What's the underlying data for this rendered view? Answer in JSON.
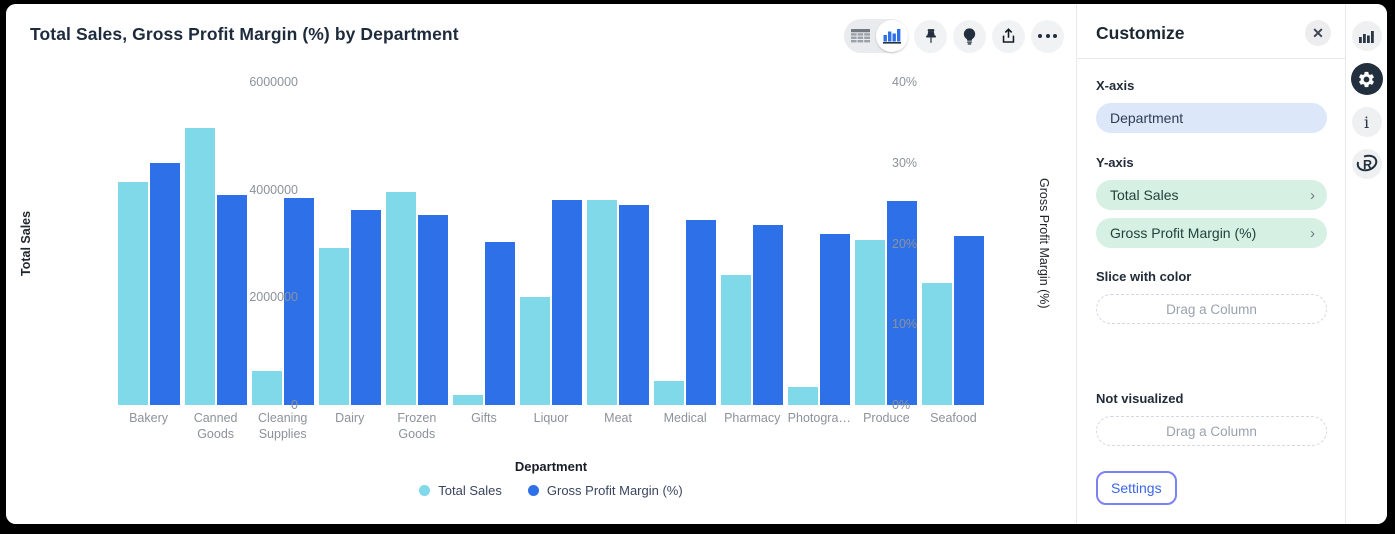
{
  "header": {
    "title": "Total Sales, Gross Profit Margin (%) by Department"
  },
  "toolbar": {
    "view_toggle": {
      "options": [
        "table-view",
        "chart-view"
      ],
      "selected": "chart-view"
    },
    "icons": [
      "pin-icon",
      "lightbulb-icon",
      "share-icon",
      "more-options-icon"
    ]
  },
  "chart_data": {
    "type": "bar",
    "title": "Total Sales, Gross Profit Margin (%) by Department",
    "categories": [
      "Bakery",
      "Canned Goods",
      "Cleaning Supplies",
      "Dairy",
      "Frozen Goods",
      "Gifts",
      "Liquor",
      "Meat",
      "Medical",
      "Pharmacy",
      "Photogra…",
      "Produce",
      "Seafood"
    ],
    "series": [
      {
        "name": "Total Sales",
        "axis": "left",
        "color": "#7fd9e8",
        "values": [
          4150000,
          5150000,
          630000,
          2920000,
          3960000,
          190000,
          2000000,
          3810000,
          450000,
          2410000,
          330000,
          3070000,
          2270000
        ]
      },
      {
        "name": "Gross Profit Margin (%)",
        "axis": "right",
        "color": "#2e70e8",
        "values": [
          30.0,
          26.0,
          25.7,
          24.2,
          23.5,
          20.2,
          25.4,
          24.8,
          22.9,
          22.3,
          21.2,
          25.3,
          20.9
        ]
      }
    ],
    "left_axis": {
      "label": "Total Sales",
      "ticks": [
        "6000000",
        "4000000",
        "2000000",
        "0"
      ],
      "min": 0,
      "max": 6000000
    },
    "right_axis": {
      "label": "Gross Profit Margin (%)",
      "ticks": [
        "40%",
        "30%",
        "20%",
        "10%",
        "0%"
      ],
      "min": 0,
      "max": 40
    },
    "xlabel": "Department",
    "legend": [
      {
        "label": "Total Sales",
        "color": "#7fd9e8"
      },
      {
        "label": "Gross Profit Margin (%)",
        "color": "#2e70e8"
      }
    ],
    "grid": false,
    "legend_position": "bottom"
  },
  "panel": {
    "title": "Customize",
    "close_icon": "close-icon",
    "x_axis": {
      "label": "X-axis",
      "value": "Department"
    },
    "y_axis": {
      "label": "Y-axis",
      "values": [
        "Total Sales",
        "Gross Profit Margin (%)"
      ]
    },
    "slice": {
      "label": "Slice with color",
      "placeholder": "Drag a Column"
    },
    "not_visualized": {
      "label": "Not visualized",
      "placeholder": "Drag a Column"
    },
    "settings_label": "Settings"
  },
  "side_toolbar": {
    "icons": [
      "bar-chart-icon",
      "gear-icon",
      "info-icon",
      "r-language-icon"
    ],
    "active": "gear-icon"
  },
  "colors": {
    "series_teal": "#7fd9e8",
    "series_blue": "#2e70e8",
    "x_pill_bg": "#dde7fa",
    "y_pill_bg": "#d6f1e3",
    "settings_blue": "#3a66e8",
    "focus_ring": "#7d82ee",
    "icon_dark": "#222f3d"
  }
}
